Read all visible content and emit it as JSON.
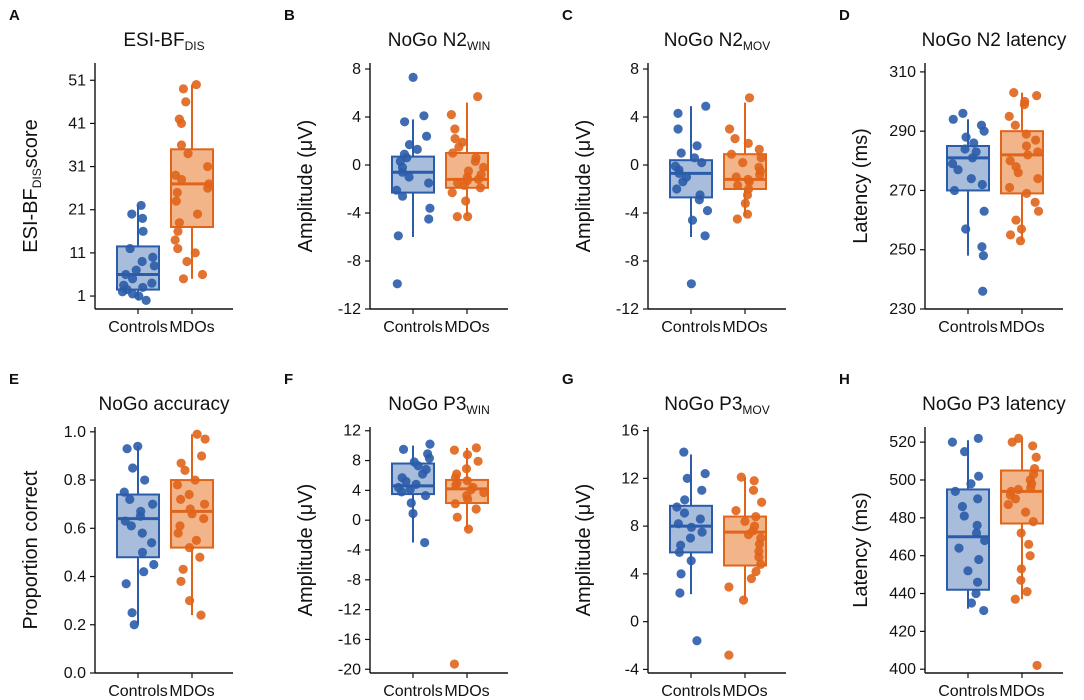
{
  "colors": {
    "controls": "#2a5caa",
    "controls_fill": "#a8bcdc",
    "mdos": "#e0641a",
    "mdos_fill": "#f2b58a",
    "axis": "#111111"
  },
  "chart_data": [
    {
      "type": "box",
      "letter": "A",
      "title": {
        "main": "ESI-BF",
        "sub": "DIS",
        "tail": ""
      },
      "ylabel": {
        "main": "ESI-BF",
        "sub": "DIS",
        "tail": "score"
      },
      "categories": [
        "Controls",
        "MDOs"
      ],
      "ylim": [
        -2,
        55
      ],
      "yticks": [
        1,
        11,
        21,
        31,
        41,
        51
      ],
      "groups": [
        {
          "name": "Controls",
          "q1": 2.5,
          "median": 6,
          "q3": 12.5,
          "whisker_low": 0,
          "whisker_high": 22,
          "points": [
            0,
            1,
            1.5,
            2,
            2.5,
            3,
            3.5,
            4,
            5,
            6,
            7,
            8,
            9,
            10,
            12,
            16,
            19,
            20,
            22
          ]
        },
        {
          "name": "MDOs",
          "q1": 17,
          "median": 27,
          "q3": 35,
          "whisker_low": 5,
          "whisker_high": 50,
          "points": [
            5,
            6,
            9,
            11,
            12,
            14,
            16,
            18,
            20,
            23,
            25,
            26,
            27,
            28,
            29,
            31,
            34,
            36,
            41,
            42,
            46,
            49,
            50
          ]
        }
      ]
    },
    {
      "type": "box",
      "letter": "B",
      "title": {
        "main": "NoGo N2",
        "sub": "WIN",
        "tail": ""
      },
      "ylabel": {
        "main": "Amplitude (μV)",
        "sub": "",
        "tail": ""
      },
      "categories": [
        "Controls",
        "MDOs"
      ],
      "ylim": [
        -12,
        8.5
      ],
      "yticks": [
        -12,
        -8,
        -4,
        0,
        4,
        8
      ],
      "groups": [
        {
          "name": "Controls",
          "q1": -2.3,
          "median": -0.6,
          "q3": 0.7,
          "whisker_low": -6,
          "whisker_high": 3.8,
          "points": [
            -9.9,
            -5.9,
            -4.5,
            -3.6,
            -2.6,
            -2.1,
            -1.5,
            -1.0,
            -0.6,
            -0.2,
            0.3,
            0.6,
            0.9,
            1.3,
            1.7,
            2.4,
            3.6,
            4.1,
            7.3
          ]
        },
        {
          "name": "MDOs",
          "q1": -1.9,
          "median": -1.2,
          "q3": 1.0,
          "whisker_low": -4.3,
          "whisker_high": 5.2,
          "points": [
            -4.3,
            -4.3,
            -3.0,
            -2.3,
            -1.9,
            -1.7,
            -1.5,
            -1.3,
            -1.2,
            -1.0,
            -0.8,
            -0.5,
            -0.2,
            0.3,
            0.6,
            1.0,
            1.5,
            1.9,
            2.2,
            3.0,
            4.2,
            5.7
          ]
        }
      ]
    },
    {
      "type": "box",
      "letter": "C",
      "title": {
        "main": "NoGo N2",
        "sub": "MOV",
        "tail": ""
      },
      "ylabel": {
        "main": "Amplitude (μV)",
        "sub": "",
        "tail": ""
      },
      "categories": [
        "Controls",
        "MDOs"
      ],
      "ylim": [
        -12,
        8.5
      ],
      "yticks": [
        -12,
        -8,
        -4,
        0,
        4,
        8
      ],
      "groups": [
        {
          "name": "Controls",
          "q1": -2.7,
          "median": -0.7,
          "q3": 0.4,
          "whisker_low": -6,
          "whisker_high": 4.9,
          "points": [
            -9.9,
            -5.9,
            -4.6,
            -3.8,
            -2.9,
            -2.5,
            -2.0,
            -1.4,
            -1.0,
            -0.7,
            -0.4,
            -0.1,
            0.2,
            0.6,
            1.0,
            1.6,
            3.0,
            4.3,
            4.9
          ]
        },
        {
          "name": "MDOs",
          "q1": -2.0,
          "median": -1.2,
          "q3": 0.9,
          "whisker_low": -4.3,
          "whisker_high": 5.2,
          "points": [
            -4.5,
            -4.1,
            -3.2,
            -2.5,
            -2.0,
            -1.7,
            -1.4,
            -1.2,
            -1.0,
            -0.8,
            -0.5,
            -0.2,
            0.2,
            0.6,
            0.9,
            1.3,
            1.8,
            2.2,
            3.0,
            5.6
          ]
        }
      ]
    },
    {
      "type": "box",
      "letter": "D",
      "title": {
        "main": "NoGo N2 latency",
        "sub": "",
        "tail": ""
      },
      "ylabel": {
        "main": "Latency (ms)",
        "sub": "",
        "tail": ""
      },
      "categories": [
        "Controls",
        "MDOs"
      ],
      "ylim": [
        230,
        313
      ],
      "yticks": [
        230,
        250,
        270,
        290,
        310
      ],
      "groups": [
        {
          "name": "Controls",
          "q1": 270,
          "median": 281,
          "q3": 285,
          "whisker_low": 248,
          "whisker_high": 294,
          "points": [
            236,
            248,
            251,
            257,
            263,
            270,
            272,
            274,
            277,
            279,
            281,
            283,
            284,
            286,
            288,
            290,
            292,
            294,
            296
          ]
        },
        {
          "name": "MDOs",
          "q1": 269,
          "median": 282,
          "q3": 290,
          "whisker_low": 253,
          "whisker_high": 303,
          "points": [
            253,
            255,
            257,
            260,
            263,
            266,
            269,
            271,
            274,
            276,
            278,
            280,
            282,
            283,
            285,
            287,
            289,
            292,
            295,
            299,
            300,
            302,
            303
          ]
        }
      ]
    },
    {
      "type": "box",
      "letter": "E",
      "title": {
        "main": "NoGo accuracy",
        "sub": "",
        "tail": ""
      },
      "ylabel": {
        "main": "Proportion correct",
        "sub": "",
        "tail": ""
      },
      "categories": [
        "Controls",
        "MDOs"
      ],
      "ylim": [
        0,
        1.02
      ],
      "yticks": [
        0.0,
        0.2,
        0.4,
        0.6,
        0.8,
        1.0
      ],
      "tickdecimals": 1,
      "groups": [
        {
          "name": "Controls",
          "q1": 0.48,
          "median": 0.64,
          "q3": 0.74,
          "whisker_low": 0.2,
          "whisker_high": 0.94,
          "points": [
            0.2,
            0.25,
            0.37,
            0.42,
            0.45,
            0.5,
            0.54,
            0.58,
            0.61,
            0.63,
            0.65,
            0.67,
            0.7,
            0.72,
            0.75,
            0.8,
            0.85,
            0.93,
            0.94
          ]
        },
        {
          "name": "MDOs",
          "q1": 0.52,
          "median": 0.67,
          "q3": 0.8,
          "whisker_low": 0.24,
          "whisker_high": 0.99,
          "points": [
            0.24,
            0.3,
            0.38,
            0.43,
            0.48,
            0.52,
            0.55,
            0.58,
            0.61,
            0.64,
            0.66,
            0.68,
            0.7,
            0.72,
            0.74,
            0.78,
            0.8,
            0.84,
            0.87,
            0.9,
            0.97,
            0.99
          ]
        }
      ]
    },
    {
      "type": "box",
      "letter": "F",
      "title": {
        "main": "NoGo P3",
        "sub": "WIN",
        "tail": ""
      },
      "ylabel": {
        "main": "Amplitude (μV)",
        "sub": "",
        "tail": ""
      },
      "categories": [
        "Controls",
        "MDOs"
      ],
      "ylim": [
        -20.5,
        12.5
      ],
      "yticks": [
        -20,
        -16,
        -12,
        -8,
        -4,
        0,
        4,
        8,
        12
      ],
      "groups": [
        {
          "name": "Controls",
          "q1": 3.5,
          "median": 4.6,
          "q3": 7.6,
          "whisker_low": -3,
          "whisker_high": 10,
          "points": [
            -3,
            0.9,
            2.3,
            3.3,
            3.8,
            4.1,
            4.4,
            4.8,
            5.2,
            5.7,
            6.2,
            6.8,
            7.3,
            7.8,
            8.3,
            8.9,
            9.5,
            10.2
          ]
        },
        {
          "name": "MDOs",
          "q1": 2.3,
          "median": 4.2,
          "q3": 5.4,
          "whisker_low": -1.2,
          "whisker_high": 9.7,
          "points": [
            -19.3,
            -1.2,
            0.4,
            1.5,
            2.2,
            2.8,
            3.3,
            3.7,
            4.1,
            4.4,
            4.7,
            5.0,
            5.3,
            5.7,
            6.2,
            6.9,
            7.9,
            8.8,
            9.4,
            9.7
          ]
        }
      ]
    },
    {
      "type": "box",
      "letter": "G",
      "title": {
        "main": "NoGo P3",
        "sub": "MOV",
        "tail": ""
      },
      "ylabel": {
        "main": "Amplitude (μV)",
        "sub": "",
        "tail": ""
      },
      "categories": [
        "Controls",
        "MDOs"
      ],
      "ylim": [
        -4.3,
        16.3
      ],
      "yticks": [
        -4,
        0,
        4,
        8,
        12,
        16
      ],
      "groups": [
        {
          "name": "Controls",
          "q1": 5.8,
          "median": 8,
          "q3": 9.7,
          "whisker_low": 2.3,
          "whisker_high": 14,
          "points": [
            -1.6,
            2.4,
            4.0,
            5.1,
            5.8,
            6.4,
            7.0,
            7.5,
            7.9,
            8.2,
            8.6,
            9.1,
            9.6,
            10.2,
            11.0,
            12.0,
            12.4,
            14.2
          ]
        },
        {
          "name": "MDOs",
          "q1": 4.7,
          "median": 7.5,
          "q3": 8.8,
          "whisker_low": 1.8,
          "whisker_high": 12.1,
          "points": [
            -2.8,
            1.8,
            2.9,
            3.6,
            4.2,
            4.8,
            5.4,
            5.9,
            6.5,
            7.0,
            7.3,
            7.6,
            8.0,
            8.4,
            8.8,
            9.3,
            10.0,
            11.0,
            11.8,
            12.1
          ]
        }
      ]
    },
    {
      "type": "box",
      "letter": "H",
      "title": {
        "main": "NoGo P3 latency",
        "sub": "",
        "tail": ""
      },
      "ylabel": {
        "main": "Latency (ms)",
        "sub": "",
        "tail": ""
      },
      "categories": [
        "Controls",
        "MDOs"
      ],
      "ylim": [
        398,
        528
      ],
      "yticks": [
        400,
        420,
        440,
        460,
        480,
        500,
        520
      ],
      "groups": [
        {
          "name": "Controls",
          "q1": 442,
          "median": 470,
          "q3": 495,
          "whisker_low": 432,
          "whisker_high": 521,
          "points": [
            431,
            435,
            440,
            446,
            452,
            458,
            464,
            468,
            472,
            476,
            481,
            486,
            490,
            494,
            498,
            502,
            515,
            520,
            522
          ]
        },
        {
          "name": "MDOs",
          "q1": 477,
          "median": 494,
          "q3": 505,
          "whisker_low": 437,
          "whisker_high": 522,
          "points": [
            402,
            437,
            441,
            447,
            453,
            460,
            466,
            472,
            478,
            483,
            487,
            490,
            492,
            494,
            495,
            496,
            498,
            500,
            503,
            506,
            512,
            518,
            520,
            522
          ]
        }
      ]
    }
  ]
}
